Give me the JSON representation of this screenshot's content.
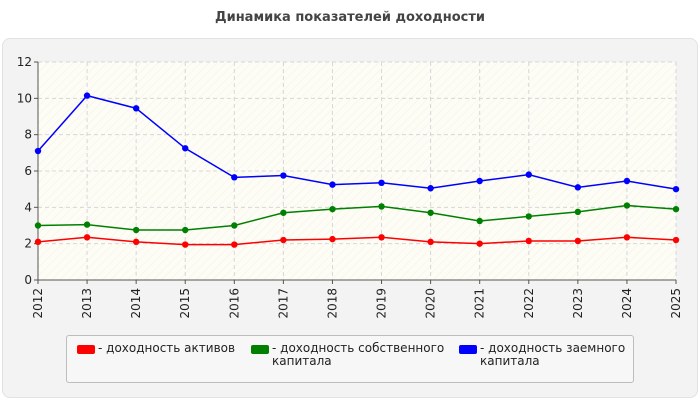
{
  "title": "Динамика показателей доходности",
  "chart_data": {
    "type": "line",
    "title": "Динамика показателей доходности",
    "xlabel": "",
    "ylabel": "",
    "categories": [
      "2012",
      "2013",
      "2014",
      "2015",
      "2016",
      "2017",
      "2018",
      "2019",
      "2020",
      "2021",
      "2022",
      "2023",
      "2024",
      "2025"
    ],
    "ylim": [
      0,
      12
    ],
    "yticks": [
      0,
      2,
      4,
      6,
      8,
      10,
      12
    ],
    "grid": true,
    "legend_position": "bottom",
    "series": [
      {
        "name": "- доходность активов",
        "color": "#ff0000",
        "values": [
          2.1,
          2.35,
          2.1,
          1.95,
          1.95,
          2.2,
          2.25,
          2.35,
          2.1,
          2.0,
          2.15,
          2.15,
          2.35,
          2.2
        ]
      },
      {
        "name": "- доходность собственного капитала",
        "color": "#008000",
        "values": [
          3.0,
          3.05,
          2.75,
          2.75,
          3.0,
          3.7,
          3.9,
          4.05,
          3.7,
          3.25,
          3.5,
          3.75,
          4.1,
          3.9
        ]
      },
      {
        "name": "- доходность заемного капитала",
        "color": "#0000ff",
        "values": [
          7.1,
          10.15,
          9.45,
          7.25,
          5.65,
          5.75,
          5.25,
          5.35,
          5.05,
          5.45,
          5.8,
          5.1,
          5.45,
          5.0
        ]
      }
    ]
  },
  "legend": {
    "items": [
      {
        "label_line1": "- доходность активов",
        "label_line2": "",
        "color": "#ff0000"
      },
      {
        "label_line1": "- доходность собственного",
        "label_line2": "капитала",
        "color": "#008000"
      },
      {
        "label_line1": "- доходность заемного",
        "label_line2": "капитала",
        "color": "#0000ff"
      }
    ]
  }
}
